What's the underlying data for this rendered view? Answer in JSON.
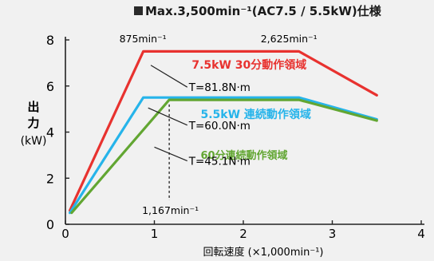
{
  "title": "Max.3,500min⁻¹(AC7.5 / 5.5kW)仕様",
  "chart_data": {
    "type": "line",
    "xlabel": "回転速度 (×1,000min⁻¹)",
    "ylabel_lines": [
      "出",
      "力",
      "(kW)"
    ],
    "xlim": [
      0,
      4
    ],
    "ylim": [
      0,
      8
    ],
    "x_ticks": [
      "0",
      "1",
      "2",
      "3",
      "4"
    ],
    "y_ticks": [
      "0",
      "2",
      "4",
      "6",
      "8"
    ],
    "grid": false,
    "series": [
      {
        "name": "7.5kW 30分動作領域",
        "color": "#e8322f",
        "torque": "T=81.8N·m",
        "x": [
          0.05,
          0.875,
          2.625,
          3.5
        ],
        "y": [
          0.6,
          7.5,
          7.5,
          5.6
        ]
      },
      {
        "name": "5.5kW 連続動作領域",
        "color": "#26b4ea",
        "torque": "T=60.0N·m",
        "x": [
          0.05,
          0.875,
          2.625,
          3.5
        ],
        "y": [
          0.5,
          5.5,
          5.5,
          4.55
        ]
      },
      {
        "name": "60分連続動作領域",
        "color": "#62a632",
        "torque": "T=45.1N·m",
        "x": [
          0.07,
          1.167,
          2.625,
          3.5
        ],
        "y": [
          0.5,
          5.4,
          5.4,
          4.5
        ]
      }
    ],
    "annotations": [
      {
        "text": "875min⁻¹",
        "x": 0.875
      },
      {
        "text": "2,625min⁻¹",
        "x": 2.625
      },
      {
        "text": "1,167min⁻¹",
        "x": 1.167
      }
    ]
  }
}
